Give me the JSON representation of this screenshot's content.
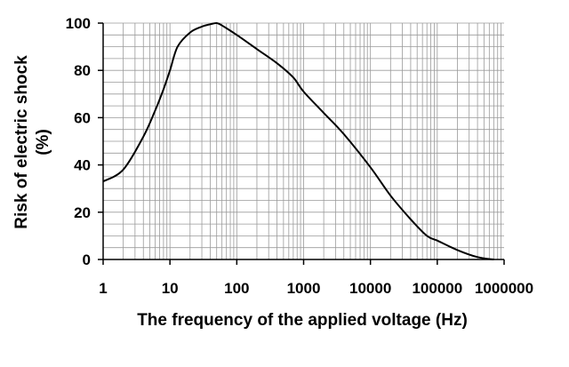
{
  "chart_data": {
    "type": "line",
    "title": "",
    "xlabel": "The frequency of the applied voltage (Hz)",
    "ylabel_line1": "Risk of electric shock",
    "ylabel_line2": "(%)",
    "x_scale": "log",
    "xlim": [
      1,
      1000000
    ],
    "ylim": [
      0,
      100
    ],
    "grid": true,
    "x_ticks": [
      1,
      10,
      100,
      1000,
      10000,
      100000,
      1000000
    ],
    "x_tick_labels": [
      "1",
      "10",
      "100",
      "1000",
      "10000",
      "100000",
      "1000000"
    ],
    "y_ticks": [
      0,
      20,
      40,
      60,
      80,
      100
    ],
    "y_tick_labels": [
      "0",
      "20",
      "40",
      "60",
      "80",
      "100"
    ],
    "series": [
      {
        "color": "#000000",
        "x": [
          1,
          2,
          4,
          6,
          8,
          10,
          13,
          20,
          30,
          40,
          50,
          60,
          100,
          200,
          400,
          700,
          1000,
          2000,
          4000,
          10000,
          20000,
          40000,
          70000,
          100000,
          200000,
          400000,
          700000
        ],
        "y": [
          33,
          38,
          52,
          63,
          72,
          80,
          90,
          96,
          98.5,
          99.5,
          100,
          99,
          95,
          89,
          83,
          77,
          71,
          62,
          53,
          39,
          27,
          17,
          10,
          8,
          4,
          1,
          0
        ]
      }
    ]
  }
}
